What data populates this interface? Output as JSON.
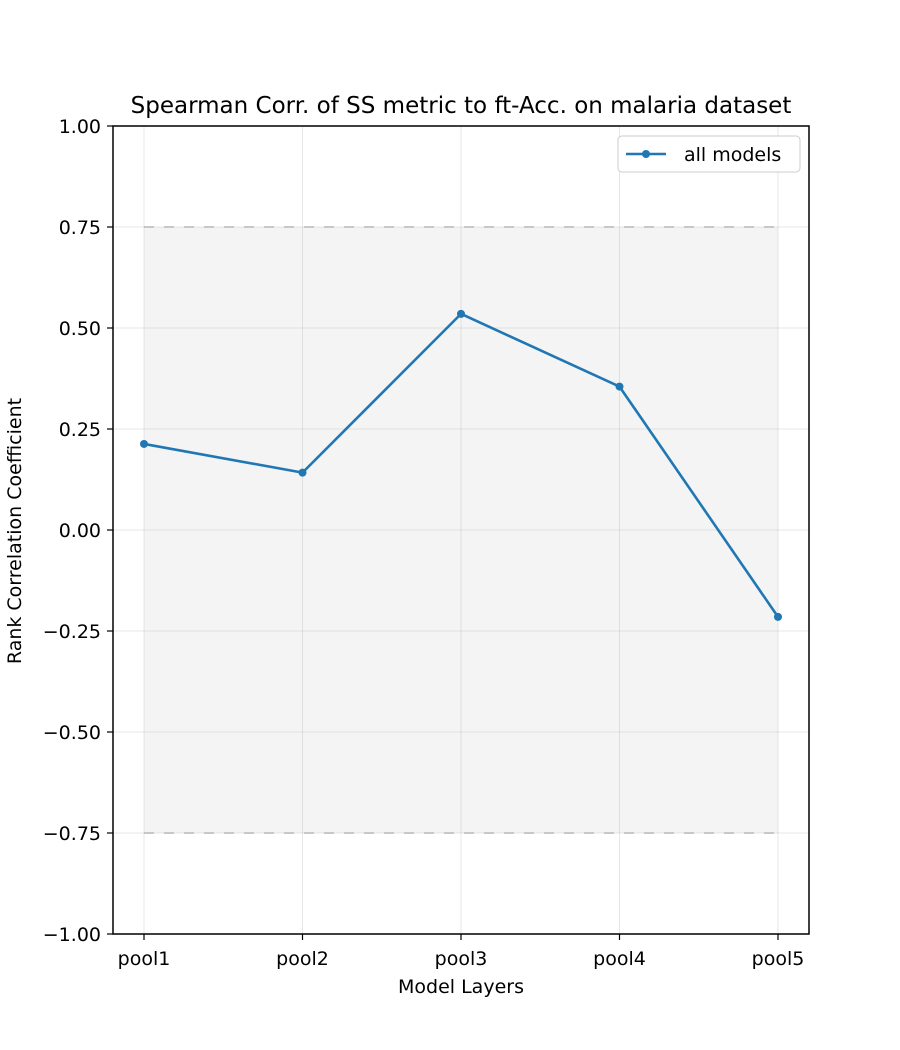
{
  "chart_data": {
    "type": "line",
    "title": "Spearman Corr. of SS metric to ft-Acc. on malaria dataset",
    "xlabel": "Model Layers",
    "ylabel": "Rank Correlation Coefficient",
    "categories": [
      "pool1",
      "pool2",
      "pool3",
      "pool4",
      "pool5"
    ],
    "series": [
      {
        "name": "all models",
        "values": [
          0.213,
          0.142,
          0.535,
          0.355,
          -0.215
        ],
        "color": "#1f77b4"
      }
    ],
    "ylim": [
      -1.0,
      1.0
    ],
    "yticks": [
      -1.0,
      -0.75,
      -0.5,
      -0.25,
      0.0,
      0.25,
      0.5,
      0.75,
      1.0
    ],
    "ytick_labels": [
      "−1.00",
      "−0.75",
      "−0.50",
      "−0.25",
      "0.00",
      "0.25",
      "0.50",
      "0.75",
      "1.00"
    ],
    "band": {
      "lower": -0.75,
      "upper": 0.75,
      "color": "#f4f4f4",
      "edge_color": "#cccccc"
    },
    "grid": true,
    "legend_position": "top-right"
  }
}
